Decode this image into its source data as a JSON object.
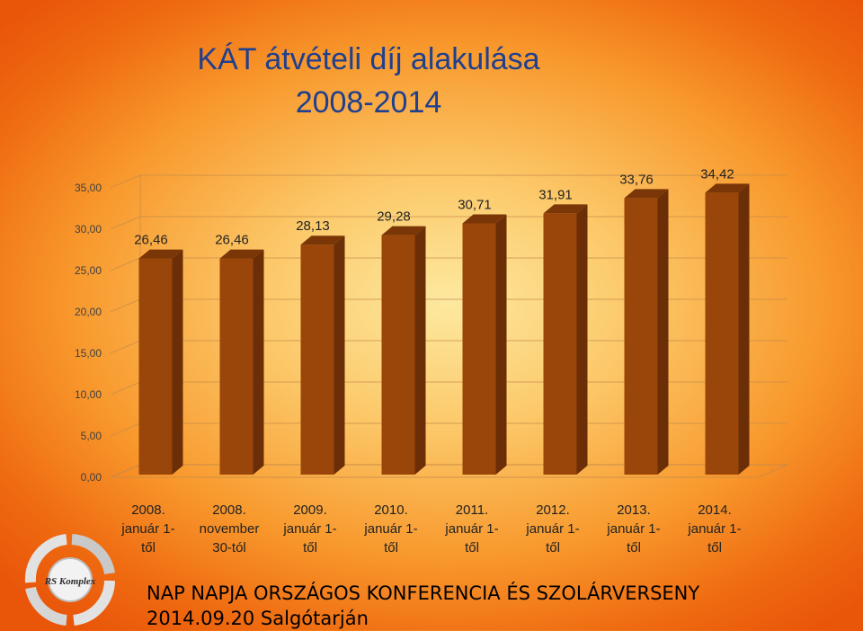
{
  "title_line1": "KÁT átvételi díj alakulása",
  "title_line2": "2008-2014",
  "footer_line1": "NAP NAPJA ORSZÁGOS KONFERENCIA ÉS SZOLÁRVERSENY",
  "footer_line2": "2014.09.20 Salgótarján",
  "logo_text": "RS Komplex",
  "colors": {
    "bar_front": "#9a4509",
    "bar_side": "#6b2e06",
    "bar_top": "#7a3606",
    "title": "#1f3f8f"
  },
  "chart_data": {
    "type": "bar",
    "categories": [
      [
        "2008.",
        "január 1-",
        "től"
      ],
      [
        "2008.",
        "november",
        "30-tól"
      ],
      [
        "2009.",
        "január 1-",
        "től"
      ],
      [
        "2010.",
        "január 1-",
        "től"
      ],
      [
        "2011.",
        "január 1-",
        "től"
      ],
      [
        "2012.",
        "január 1-",
        "től"
      ],
      [
        "2013.",
        "január 1-",
        "től"
      ],
      [
        "2014.",
        "január 1-",
        "től"
      ]
    ],
    "values": [
      26.46,
      26.46,
      28.13,
      29.28,
      30.71,
      31.91,
      33.76,
      34.42
    ],
    "value_labels": [
      "26,46",
      "26,46",
      "28,13",
      "29,28",
      "30,71",
      "31,91",
      "33,76",
      "34,42"
    ],
    "y_ticks": [
      "0,00",
      "5,00",
      "10,00",
      "15,00",
      "20,00",
      "25,00",
      "30,00",
      "35,00"
    ],
    "y_tick_values": [
      0,
      5,
      10,
      15,
      20,
      25,
      30,
      35
    ],
    "ylim": [
      0,
      35
    ],
    "grid": true,
    "legend": "none",
    "style": "3d"
  }
}
